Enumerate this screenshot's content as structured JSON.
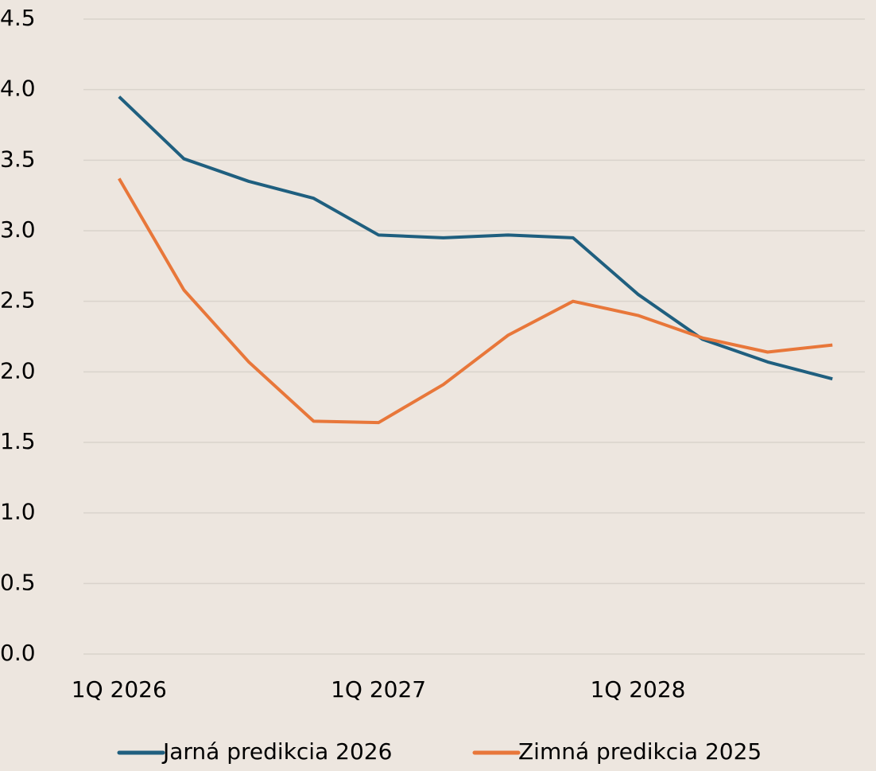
{
  "chart_data": {
    "type": "line",
    "categories": [
      "1Q 2026",
      null,
      null,
      null,
      "1Q 2027",
      null,
      null,
      null,
      "1Q 2028",
      null,
      null,
      null
    ],
    "series": [
      {
        "name": "Jarná predikcia 2026",
        "color": "#1f5f7f",
        "values": [
          3.95,
          3.51,
          3.35,
          3.23,
          2.97,
          2.95,
          2.97,
          2.95,
          2.55,
          2.23,
          2.07,
          1.95
        ]
      },
      {
        "name": "Zimná predikcia 2025",
        "color": "#e8773a",
        "values": [
          3.37,
          2.58,
          2.07,
          1.65,
          1.64,
          1.91,
          2.26,
          2.5,
          2.4,
          2.24,
          2.14,
          2.19
        ]
      }
    ],
    "ylim": [
      0,
      4.5
    ],
    "yticks": [
      {
        "value": 0,
        "label": "0.0"
      },
      0.5,
      {
        "value": 1,
        "label": "1.0"
      },
      1.5,
      {
        "value": 2,
        "label": "2.0"
      },
      2.5,
      {
        "value": 3,
        "label": "3.0"
      },
      3.5,
      {
        "value": 4,
        "label": "4.0"
      },
      4.5
    ],
    "grid": true,
    "legend": "bottom"
  }
}
